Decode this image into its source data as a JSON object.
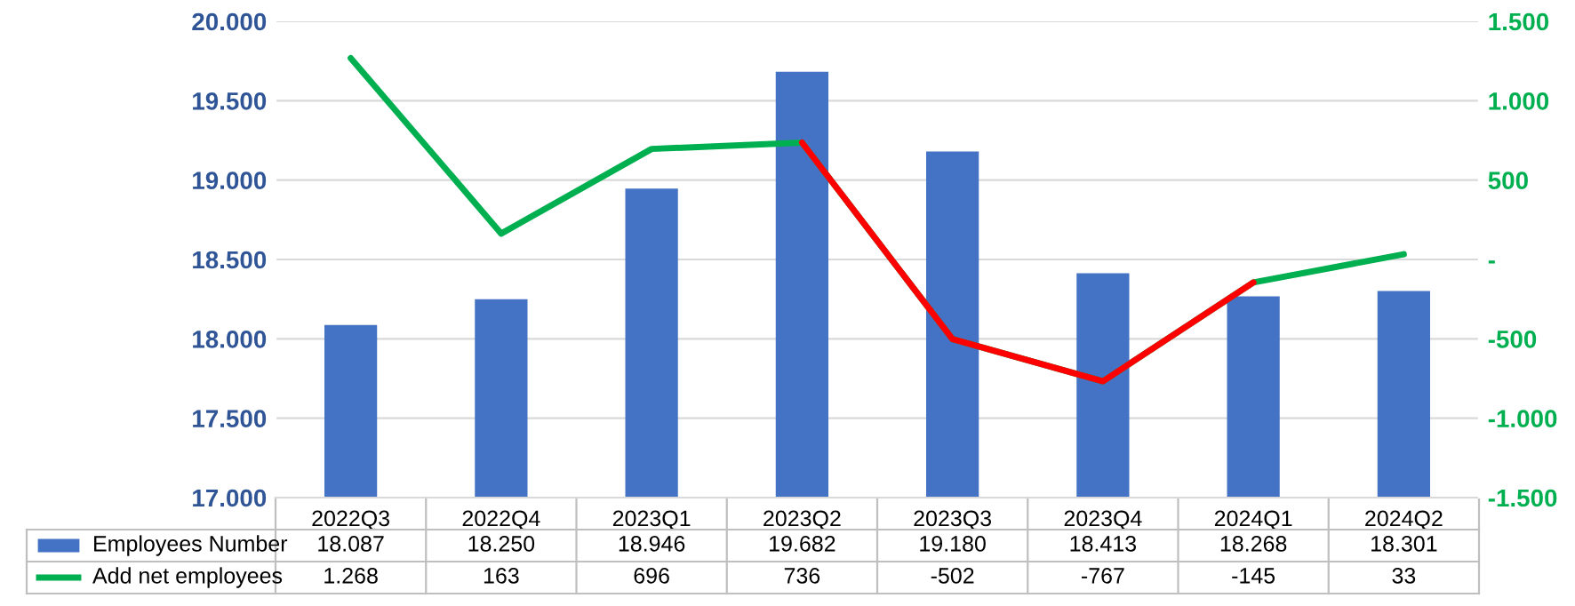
{
  "chart_data": {
    "type": "bar",
    "categories": [
      "2022Q3",
      "2022Q4",
      "2023Q1",
      "2023Q2",
      "2023Q3",
      "2023Q4",
      "2024Q1",
      "2024Q2"
    ],
    "series": [
      {
        "name": "Employees Number",
        "color": "#4472c4",
        "values": [
          18087,
          18250,
          18946,
          19682,
          19180,
          18413,
          18268,
          18301
        ],
        "value_labels": [
          "18.087",
          "18.250",
          "18.946",
          "19.682",
          "19.180",
          "18.413",
          "18.268",
          "18.301"
        ]
      },
      {
        "name": "Add net employees",
        "type": "line",
        "axis": "y2",
        "color": "#00b050",
        "values": [
          1268,
          163,
          696,
          736,
          -502,
          -767,
          -145,
          33
        ],
        "value_labels": [
          "1.268",
          "163",
          "696",
          "736",
          "-502",
          "-767",
          "-145",
          "33"
        ]
      },
      {
        "type": "line",
        "axis": "y2",
        "color": "#ff0000",
        "values": [
          null,
          null,
          null,
          736,
          -502,
          -767,
          -145,
          null
        ]
      }
    ],
    "ylim": [
      17000,
      20000
    ],
    "yticks": [
      {
        "value": 17000,
        "label": "17.000"
      },
      {
        "value": 17500,
        "label": "17.500"
      },
      {
        "value": 18000,
        "label": "18.000"
      },
      {
        "value": 18500,
        "label": "18.500"
      },
      {
        "value": 19000,
        "label": "19.000"
      },
      {
        "value": 19500,
        "label": "19.500"
      },
      {
        "value": 20000,
        "label": "20.000"
      }
    ],
    "y2lim": [
      -1500,
      1500
    ],
    "y2ticks": [
      {
        "value": -1500,
        "label": "-1.500"
      },
      {
        "value": -1000,
        "label": "-1.000"
      },
      {
        "value": -500,
        "label": "-500"
      },
      {
        "value": 0,
        "label": "-"
      },
      {
        "value": 500,
        "label": "500"
      },
      {
        "value": 1000,
        "label": "1.000"
      },
      {
        "value": 1500,
        "label": "1.500"
      }
    ],
    "grid": "y",
    "legend": "bottom left",
    "marker": "none",
    "line_style": "solid"
  }
}
